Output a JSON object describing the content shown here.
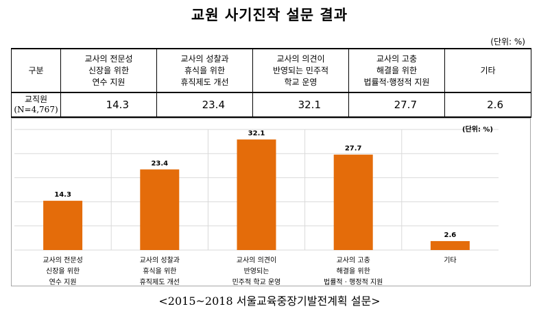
{
  "title": "교원 사기진작 설문 결과",
  "unit_label": "(단위: %)",
  "table": {
    "corner_label": "구분",
    "headers": [
      "교사의 전문성\n신장을 위한\n연수 지원",
      "교사의 성찰과\n휴식을 위한\n휴직제도 개선",
      "교사의 의견이\n반영되는 민주적\n학교 운영",
      "교사의 고충\n해결을 위한\n법률적·행정적 지원",
      "기타"
    ],
    "row_label": "교직원\n(N=4,767)",
    "row_values": [
      "14.3",
      "23.4",
      "32.1",
      "27.7",
      "2.6"
    ]
  },
  "chart_data": {
    "type": "bar",
    "unit_label": "(단위: %)",
    "categories": [
      "교사의 전문성\n신장을 위한\n연수 지원",
      "교사의 성찰과\n휴식을 위한\n휴직제도 개선",
      "교사의 의견이\n반영되는\n민주적 학교 운영",
      "교사의 고충\n해결을 위한\n법률적 · 행정적 지원",
      "기타"
    ],
    "values": [
      14.3,
      23.4,
      32.1,
      27.7,
      2.6
    ],
    "data_labels": [
      "14.3",
      "23.4",
      "32.1",
      "27.7",
      "2.6"
    ],
    "ylim": [
      0,
      35
    ],
    "grid": true,
    "bar_color": "#E46C0A",
    "grid_color": "#D9D9D9"
  },
  "source": "<2015~2018 서울교육중장기발전계획 설문>"
}
